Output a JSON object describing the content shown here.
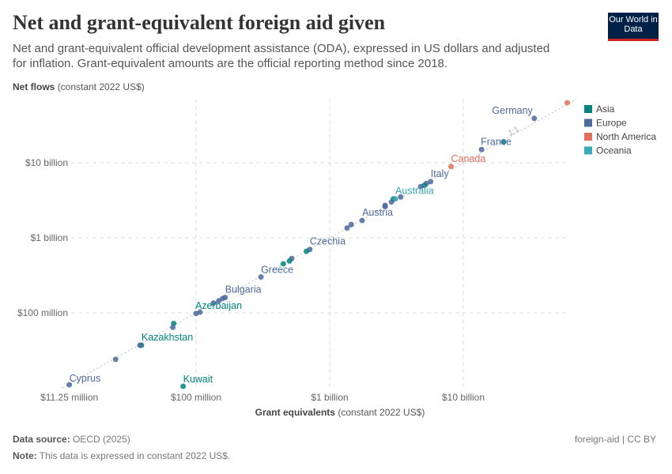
{
  "title": "Net and grant-equivalent foreign aid given",
  "subtitle": "Net and grant-equivalent official development assistance (ODA), expressed in US dollars and adjusted for inflation. Grant-equivalent amounts are the official reporting method since 2018.",
  "logo": "Our World in Data",
  "footer": {
    "source_label": "Data source:",
    "source": "OECD (2025)",
    "note_label": "Note:",
    "note": "This data is expressed in constant 2022 US$.",
    "license": "foreign-aid | CC BY"
  },
  "chart_data": {
    "type": "scatter",
    "xlabel": "Grant equivalents",
    "xlabel_unit": "(constant 2022 US$)",
    "ylabel": "Net flows",
    "ylabel_unit": "(constant 2022 US$)",
    "x_scale": "log",
    "y_scale": "log",
    "xlim": [
      10000000,
      70000000000
    ],
    "ylim": [
      9000000,
      70000000000
    ],
    "x_ticks": [
      {
        "v": 11250000,
        "label": "$11.25 million"
      },
      {
        "v": 100000000,
        "label": "$100 million"
      },
      {
        "v": 1000000000,
        "label": "$1 billion"
      },
      {
        "v": 10000000000,
        "label": "$10 billion"
      }
    ],
    "y_ticks": [
      {
        "v": 100000000,
        "label": "$100 million"
      },
      {
        "v": 1000000000,
        "label": "$1 billion"
      },
      {
        "v": 10000000000,
        "label": "$10 billion"
      }
    ],
    "grid": true,
    "reference_line": "1:1",
    "legend_position": "right",
    "colors": {
      "Asia": "#00847e",
      "Europe": "#4c6a9c",
      "North America": "#e56e5a",
      "Oceania": "#38aaba"
    },
    "legend": [
      "Asia",
      "Europe",
      "North America",
      "Oceania"
    ],
    "points": [
      {
        "x": 60000000000,
        "y": 63000000000,
        "region": "North America"
      },
      {
        "x": 34000000000,
        "y": 39000000000,
        "region": "Europe",
        "label": "Germany"
      },
      {
        "x": 20000000000,
        "y": 19000000000,
        "region": "Asia"
      },
      {
        "x": 13700000000,
        "y": 15000000000,
        "region": "Europe",
        "label": "France"
      },
      {
        "x": 8100000000,
        "y": 8900000000,
        "region": "North America",
        "label": "Canada"
      },
      {
        "x": 5700000000,
        "y": 5600000000,
        "region": "Europe",
        "label": "Italy"
      },
      {
        "x": 5300000000,
        "y": 5300000000,
        "region": "Europe"
      },
      {
        "x": 5100000000,
        "y": 5000000000,
        "region": "Asia"
      },
      {
        "x": 4800000000,
        "y": 4800000000,
        "region": "Europe"
      },
      {
        "x": 3400000000,
        "y": 3500000000,
        "region": "Europe"
      },
      {
        "x": 3000000000,
        "y": 3300000000,
        "region": "Asia"
      },
      {
        "x": 3100000000,
        "y": 3300000000,
        "region": "Oceania",
        "label": "Australia"
      },
      {
        "x": 2900000000,
        "y": 3000000000,
        "region": "Europe"
      },
      {
        "x": 2600000000,
        "y": 2700000000,
        "region": "Europe"
      },
      {
        "x": 2600000000,
        "y": 2600000000,
        "region": "Europe"
      },
      {
        "x": 1750000000,
        "y": 1700000000,
        "region": "Europe",
        "label": "Austria"
      },
      {
        "x": 1450000000,
        "y": 1500000000,
        "region": "Europe"
      },
      {
        "x": 1350000000,
        "y": 1350000000,
        "region": "Europe"
      },
      {
        "x": 710000000,
        "y": 700000000,
        "region": "Europe",
        "label": "Czechia"
      },
      {
        "x": 670000000,
        "y": 660000000,
        "region": "Asia"
      },
      {
        "x": 520000000,
        "y": 530000000,
        "region": "Europe"
      },
      {
        "x": 500000000,
        "y": 490000000,
        "region": "Asia"
      },
      {
        "x": 450000000,
        "y": 450000000,
        "region": "Asia"
      },
      {
        "x": 306000000,
        "y": 300000000,
        "region": "Europe",
        "label": "Greece"
      },
      {
        "x": 165000000,
        "y": 160000000,
        "region": "Europe",
        "label": "Bulgaria"
      },
      {
        "x": 158000000,
        "y": 155000000,
        "region": "Europe"
      },
      {
        "x": 148000000,
        "y": 145000000,
        "region": "Europe"
      },
      {
        "x": 135000000,
        "y": 135000000,
        "region": "Europe"
      },
      {
        "x": 100000000,
        "y": 98000000,
        "region": "Europe"
      },
      {
        "x": 107000000,
        "y": 102000000,
        "region": "Europe",
        "label": "Azerbaijan",
        "label_region": "Asia"
      },
      {
        "x": 68000000,
        "y": 72000000,
        "region": "Asia"
      },
      {
        "x": 67000000,
        "y": 64000000,
        "region": "Europe"
      },
      {
        "x": 39000000,
        "y": 37000000,
        "region": "Asia",
        "label": "Kazakhstan"
      },
      {
        "x": 38000000,
        "y": 37000000,
        "region": "Europe"
      },
      {
        "x": 25000000,
        "y": 24000000,
        "region": "Europe"
      },
      {
        "x": 11250000,
        "y": 11000000,
        "region": "Europe",
        "label": "Cyprus"
      },
      {
        "x": 80000000,
        "y": 10500000,
        "region": "Asia",
        "label": "Kuwait"
      }
    ]
  }
}
